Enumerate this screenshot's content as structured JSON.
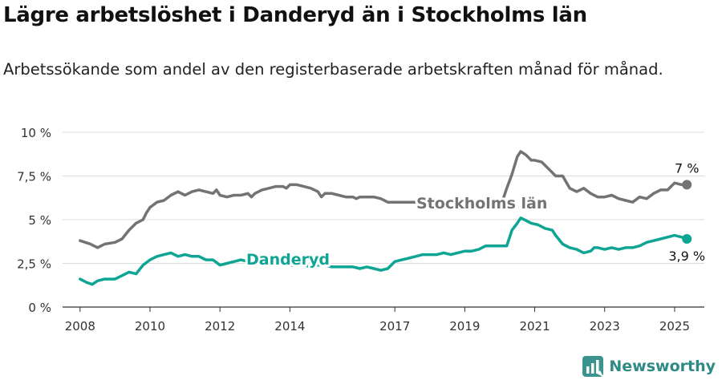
{
  "header": {
    "title": "Lägre arbetslöshet i Danderyd än i Stockholms län",
    "subtitle": "Arbetssökande som andel av den registerbaserade arbetskraften månad för månad."
  },
  "brand": {
    "name": "Newsworthy",
    "color": "#3a938c",
    "icon": "newsworthy-logo-icon"
  },
  "chart_data": {
    "type": "line",
    "title": "",
    "xlabel": "",
    "ylabel": "",
    "xlim": [
      2007.5,
      2025.85
    ],
    "ylim": [
      0,
      10
    ],
    "grid": true,
    "yticks": [
      {
        "value": 0,
        "label": "0 %"
      },
      {
        "value": 2.5,
        "label": "2,5 %"
      },
      {
        "value": 5,
        "label": "5 %"
      },
      {
        "value": 7.5,
        "label": "7,5 %"
      },
      {
        "value": 10,
        "label": "10 %"
      }
    ],
    "xticks": [
      {
        "value": 2008,
        "label": "2008"
      },
      {
        "value": 2010,
        "label": "2010"
      },
      {
        "value": 2012,
        "label": "2012"
      },
      {
        "value": 2014,
        "label": "2014"
      },
      {
        "value": 2017,
        "label": "2017"
      },
      {
        "value": 2019,
        "label": "2019"
      },
      {
        "value": 2021,
        "label": "2021"
      },
      {
        "value": 2023,
        "label": "2023"
      },
      {
        "value": 2025,
        "label": "2025"
      }
    ],
    "series": [
      {
        "name": "Stockholms län",
        "color": "#737373",
        "end_label": "7 %",
        "points": [
          [
            2008.0,
            3.8
          ],
          [
            2008.3,
            3.6
          ],
          [
            2008.5,
            3.4
          ],
          [
            2008.7,
            3.6
          ],
          [
            2009.0,
            3.7
          ],
          [
            2009.2,
            3.9
          ],
          [
            2009.4,
            4.4
          ],
          [
            2009.6,
            4.8
          ],
          [
            2009.8,
            5.0
          ],
          [
            2009.9,
            5.4
          ],
          [
            2010.0,
            5.7
          ],
          [
            2010.2,
            6.0
          ],
          [
            2010.4,
            6.1
          ],
          [
            2010.6,
            6.4
          ],
          [
            2010.8,
            6.6
          ],
          [
            2010.9,
            6.5
          ],
          [
            2011.0,
            6.4
          ],
          [
            2011.2,
            6.6
          ],
          [
            2011.4,
            6.7
          ],
          [
            2011.6,
            6.6
          ],
          [
            2011.8,
            6.5
          ],
          [
            2011.9,
            6.7
          ],
          [
            2012.0,
            6.4
          ],
          [
            2012.2,
            6.3
          ],
          [
            2012.4,
            6.4
          ],
          [
            2012.6,
            6.4
          ],
          [
            2012.8,
            6.5
          ],
          [
            2012.9,
            6.3
          ],
          [
            2013.0,
            6.5
          ],
          [
            2013.2,
            6.7
          ],
          [
            2013.4,
            6.8
          ],
          [
            2013.6,
            6.9
          ],
          [
            2013.8,
            6.9
          ],
          [
            2013.9,
            6.8
          ],
          [
            2014.0,
            7.0
          ],
          [
            2014.2,
            7.0
          ],
          [
            2014.4,
            6.9
          ],
          [
            2014.6,
            6.8
          ],
          [
            2014.8,
            6.6
          ],
          [
            2014.9,
            6.3
          ],
          [
            2015.0,
            6.5
          ],
          [
            2015.2,
            6.5
          ],
          [
            2015.4,
            6.4
          ],
          [
            2015.6,
            6.3
          ],
          [
            2015.8,
            6.3
          ],
          [
            2015.9,
            6.2
          ],
          [
            2016.0,
            6.3
          ],
          [
            2016.2,
            6.3
          ],
          [
            2016.4,
            6.3
          ],
          [
            2016.6,
            6.2
          ],
          [
            2016.8,
            6.0
          ],
          [
            2017.0,
            6.0
          ],
          [
            2017.2,
            6.0
          ],
          [
            2017.4,
            6.0
          ],
          [
            2017.6,
            6.0
          ],
          [
            2017.75,
            6.1
          ],
          [
            2020.1,
            6.2
          ],
          [
            2020.2,
            6.8
          ],
          [
            2020.35,
            7.6
          ],
          [
            2020.5,
            8.6
          ],
          [
            2020.6,
            8.9
          ],
          [
            2020.75,
            8.7
          ],
          [
            2020.9,
            8.4
          ],
          [
            2021.0,
            8.4
          ],
          [
            2021.2,
            8.3
          ],
          [
            2021.4,
            7.9
          ],
          [
            2021.6,
            7.5
          ],
          [
            2021.8,
            7.5
          ],
          [
            2022.0,
            6.8
          ],
          [
            2022.2,
            6.6
          ],
          [
            2022.4,
            6.8
          ],
          [
            2022.6,
            6.5
          ],
          [
            2022.8,
            6.3
          ],
          [
            2023.0,
            6.3
          ],
          [
            2023.2,
            6.4
          ],
          [
            2023.4,
            6.2
          ],
          [
            2023.6,
            6.1
          ],
          [
            2023.8,
            6.0
          ],
          [
            2024.0,
            6.3
          ],
          [
            2024.2,
            6.2
          ],
          [
            2024.4,
            6.5
          ],
          [
            2024.6,
            6.7
          ],
          [
            2024.8,
            6.7
          ],
          [
            2025.0,
            7.1
          ],
          [
            2025.2,
            7.0
          ],
          [
            2025.35,
            7.0
          ]
        ]
      },
      {
        "name": "Danderyd",
        "color": "#0ea594",
        "end_label": "3,9 %",
        "points": [
          [
            2008.0,
            1.6
          ],
          [
            2008.2,
            1.4
          ],
          [
            2008.35,
            1.3
          ],
          [
            2008.5,
            1.5
          ],
          [
            2008.7,
            1.6
          ],
          [
            2009.0,
            1.6
          ],
          [
            2009.2,
            1.8
          ],
          [
            2009.4,
            2.0
          ],
          [
            2009.6,
            1.9
          ],
          [
            2009.8,
            2.4
          ],
          [
            2010.0,
            2.7
          ],
          [
            2010.2,
            2.9
          ],
          [
            2010.4,
            3.0
          ],
          [
            2010.6,
            3.1
          ],
          [
            2010.8,
            2.9
          ],
          [
            2011.0,
            3.0
          ],
          [
            2011.2,
            2.9
          ],
          [
            2011.4,
            2.9
          ],
          [
            2011.6,
            2.7
          ],
          [
            2011.8,
            2.7
          ],
          [
            2012.0,
            2.4
          ],
          [
            2012.2,
            2.5
          ],
          [
            2012.4,
            2.6
          ],
          [
            2012.6,
            2.7
          ],
          [
            2012.8,
            2.6
          ],
          [
            2013.0,
            2.7
          ],
          [
            2013.2,
            2.8
          ],
          [
            2013.4,
            2.7
          ],
          [
            2013.6,
            2.6
          ],
          [
            2013.8,
            2.5
          ],
          [
            2014.0,
            2.4
          ],
          [
            2014.2,
            2.4
          ],
          [
            2014.4,
            2.4
          ],
          [
            2014.6,
            2.3
          ],
          [
            2014.8,
            2.4
          ],
          [
            2015.0,
            2.4
          ],
          [
            2015.2,
            2.3
          ],
          [
            2015.4,
            2.3
          ],
          [
            2015.6,
            2.3
          ],
          [
            2015.8,
            2.3
          ],
          [
            2016.0,
            2.2
          ],
          [
            2016.2,
            2.3
          ],
          [
            2016.4,
            2.2
          ],
          [
            2016.6,
            2.1
          ],
          [
            2016.8,
            2.2
          ],
          [
            2017.0,
            2.6
          ],
          [
            2017.2,
            2.7
          ],
          [
            2017.4,
            2.8
          ],
          [
            2017.6,
            2.9
          ],
          [
            2017.8,
            3.0
          ],
          [
            2018.0,
            3.0
          ],
          [
            2018.2,
            3.0
          ],
          [
            2018.4,
            3.1
          ],
          [
            2018.6,
            3.0
          ],
          [
            2018.8,
            3.1
          ],
          [
            2019.0,
            3.2
          ],
          [
            2019.2,
            3.2
          ],
          [
            2019.4,
            3.3
          ],
          [
            2019.6,
            3.5
          ],
          [
            2019.8,
            3.5
          ],
          [
            2020.0,
            3.5
          ],
          [
            2020.2,
            3.5
          ],
          [
            2020.35,
            4.4
          ],
          [
            2020.5,
            4.8
          ],
          [
            2020.6,
            5.1
          ],
          [
            2020.7,
            5.0
          ],
          [
            2020.9,
            4.8
          ],
          [
            2021.1,
            4.7
          ],
          [
            2021.3,
            4.5
          ],
          [
            2021.5,
            4.4
          ],
          [
            2021.6,
            4.1
          ],
          [
            2021.8,
            3.6
          ],
          [
            2022.0,
            3.4
          ],
          [
            2022.2,
            3.3
          ],
          [
            2022.4,
            3.1
          ],
          [
            2022.6,
            3.2
          ],
          [
            2022.7,
            3.4
          ],
          [
            2022.8,
            3.4
          ],
          [
            2023.0,
            3.3
          ],
          [
            2023.2,
            3.4
          ],
          [
            2023.4,
            3.3
          ],
          [
            2023.6,
            3.4
          ],
          [
            2023.8,
            3.4
          ],
          [
            2024.0,
            3.5
          ],
          [
            2024.2,
            3.7
          ],
          [
            2024.4,
            3.8
          ],
          [
            2024.6,
            3.9
          ],
          [
            2024.8,
            4.0
          ],
          [
            2025.0,
            4.1
          ],
          [
            2025.2,
            4.0
          ],
          [
            2025.35,
            3.9
          ]
        ]
      }
    ]
  }
}
